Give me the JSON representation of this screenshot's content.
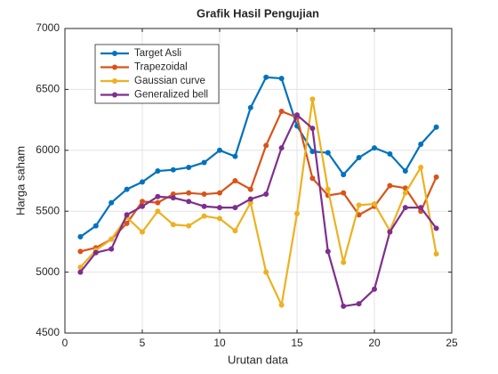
{
  "chart_data": {
    "type": "line",
    "title": "Grafik Hasil Pengujian",
    "x_label": "Urutan data",
    "y_label": "Harga saham",
    "x": [
      1,
      2,
      3,
      4,
      5,
      6,
      7,
      8,
      9,
      10,
      11,
      12,
      13,
      14,
      15,
      16,
      17,
      18,
      19,
      20,
      21,
      22,
      23,
      24
    ],
    "series": [
      {
        "name": "Target Asli",
        "color": "#0072bd",
        "values": [
          5290,
          5380,
          5570,
          5680,
          5740,
          5830,
          5840,
          5860,
          5900,
          6000,
          5950,
          6350,
          6600,
          6590,
          6200,
          5990,
          5980,
          5800,
          5940,
          6020,
          5970,
          5830,
          6050,
          6190
        ]
      },
      {
        "name": "Trapezoidal",
        "color": "#d95319",
        "values": [
          5170,
          5200,
          5270,
          5400,
          5580,
          5570,
          5640,
          5650,
          5640,
          5650,
          5750,
          5680,
          6040,
          6320,
          6270,
          5770,
          5630,
          5650,
          5470,
          5540,
          5710,
          5690,
          5500,
          5780
        ]
      },
      {
        "name": "Gaussian curve",
        "color": "#edb120",
        "values": [
          5040,
          5180,
          5270,
          5450,
          5330,
          5500,
          5390,
          5380,
          5460,
          5440,
          5340,
          5570,
          5000,
          4730,
          5480,
          6420,
          5680,
          5080,
          5550,
          5560,
          5340,
          5650,
          5860,
          5150
        ]
      },
      {
        "name": "Generalized bell",
        "color": "#7e2f8e",
        "values": [
          5000,
          5160,
          5190,
          5470,
          5540,
          5620,
          5610,
          5580,
          5540,
          5530,
          5530,
          5600,
          5640,
          6020,
          6290,
          6180,
          5170,
          4720,
          4740,
          4860,
          5330,
          5530,
          5530,
          5360
        ]
      }
    ],
    "xlim": [
      0,
      25
    ],
    "xticks": [
      0,
      5,
      10,
      15,
      20,
      25
    ],
    "ylim": [
      4500,
      7000
    ],
    "yticks": [
      4500,
      5000,
      5500,
      6000,
      6500,
      7000
    ],
    "grid": true,
    "legend": "top-left"
  }
}
